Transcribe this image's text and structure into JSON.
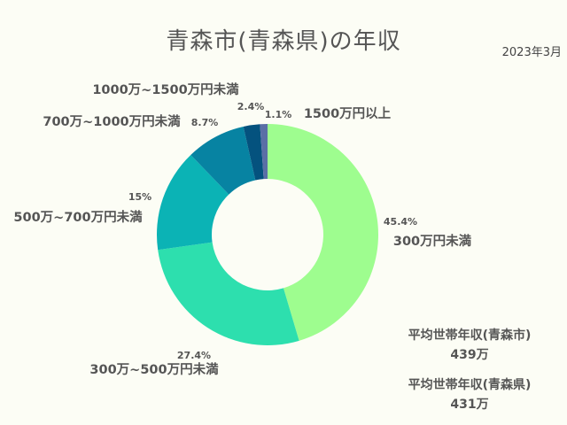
{
  "header": {
    "title": "青森市(青森県)の年収",
    "date": "2023年3月"
  },
  "chart_data": {
    "type": "pie",
    "subtype": "donut",
    "categories": [
      "300万円未満",
      "300万~500万円未満",
      "500万~700万円未満",
      "700万~1000万円未満",
      "1000万~1500万円未満",
      "1500万円以上"
    ],
    "values": [
      45.4,
      27.4,
      15,
      8.7,
      2.4,
      1.1
    ],
    "value_labels": [
      "45.4%",
      "27.4%",
      "15%",
      "8.7%",
      "2.4%",
      "1.1%"
    ],
    "colors": [
      "#9efd8f",
      "#2ddfae",
      "#0bb3b5",
      "#0783a2",
      "#04527e",
      "#5a6fa6"
    ],
    "title": "青森市(青森県)の年収"
  },
  "summary": {
    "city_label": "平均世帯年収(青森市)",
    "city_value": "439万",
    "pref_label": "平均世帯年収(青森県)",
    "pref_value": "431万"
  }
}
